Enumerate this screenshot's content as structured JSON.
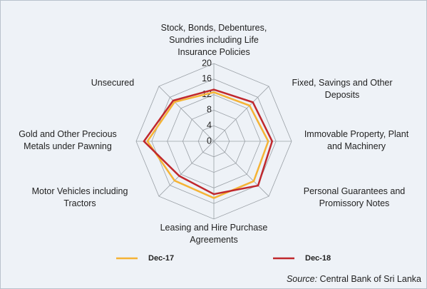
{
  "chart_data": {
    "type": "radar",
    "categories": [
      [
        "Stock, Bonds, Debentures,",
        "Sundries including Life",
        "Insurance Policies"
      ],
      [
        "Fixed, Savings and Other",
        "Deposits"
      ],
      [
        "Immovable Property, Plant",
        "and Machinery"
      ],
      [
        "Personal Guarantees and",
        "Promissory Notes"
      ],
      [
        "Leasing and Hire Purchase",
        "Agreements"
      ],
      [
        "Motor Vehicles including",
        "Tractors"
      ],
      [
        "Gold and Other Precious",
        "Metals under Pawning"
      ],
      [
        "Unsecured"
      ]
    ],
    "series": [
      {
        "name": "Dec-17",
        "color": "#f5b335",
        "values": [
          12.6,
          13.0,
          14.0,
          14.5,
          14.6,
          14.3,
          17.1,
          14.3
        ]
      },
      {
        "name": "Dec-18",
        "color": "#c0282d",
        "values": [
          13.3,
          14.2,
          15.0,
          16.1,
          13.6,
          12.6,
          18.0,
          14.8
        ]
      }
    ],
    "ylim": [
      0,
      20
    ],
    "yticks": [
      0,
      4,
      8,
      12,
      16,
      20
    ],
    "grid": true,
    "source_label": "Source:",
    "source": "Central Bank of Sri Lanka"
  }
}
